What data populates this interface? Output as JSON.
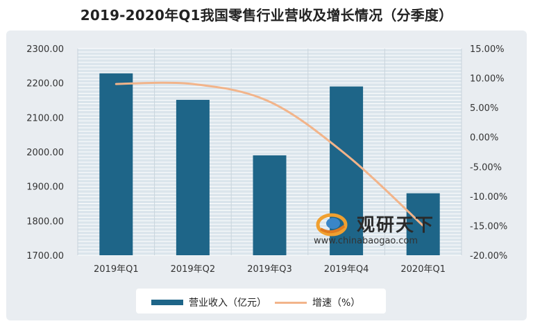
{
  "title": "2019-2020年Q1我国零售行业营收及增长情况（分季度）",
  "chart_data": {
    "type": "bar",
    "categories": [
      "2019年Q1",
      "2019年Q2",
      "2019年Q3",
      "2019年Q4",
      "2020年Q1"
    ],
    "series": [
      {
        "name": "营业收入（亿元）",
        "type": "bar",
        "axis": "left",
        "values": [
          2228,
          2151,
          1990,
          2190,
          1880
        ]
      },
      {
        "name": "增速（%）",
        "type": "line",
        "axis": "right",
        "values": [
          9.0,
          9.0,
          6.0,
          -3.0,
          -15.0
        ]
      }
    ],
    "ylim_left": [
      1700,
      2300
    ],
    "ylim_right": [
      -20,
      15
    ],
    "yticks_left": [
      "2300.00",
      "2200.00",
      "2100.00",
      "2000.00",
      "1900.00",
      "1800.00",
      "1700.00"
    ],
    "yticks_right": [
      "15.00%",
      "10.00%",
      "5.00%",
      "0.00%",
      "-5.00%",
      "-10.00%",
      "-15.00%",
      "-20.00%"
    ],
    "grid": true,
    "legend": "bottom",
    "colors": {
      "bar": "#1e6588",
      "line": "#f2b48a"
    }
  },
  "watermark": {
    "name": "观研天下",
    "url": "www.chinabaogao.com"
  }
}
